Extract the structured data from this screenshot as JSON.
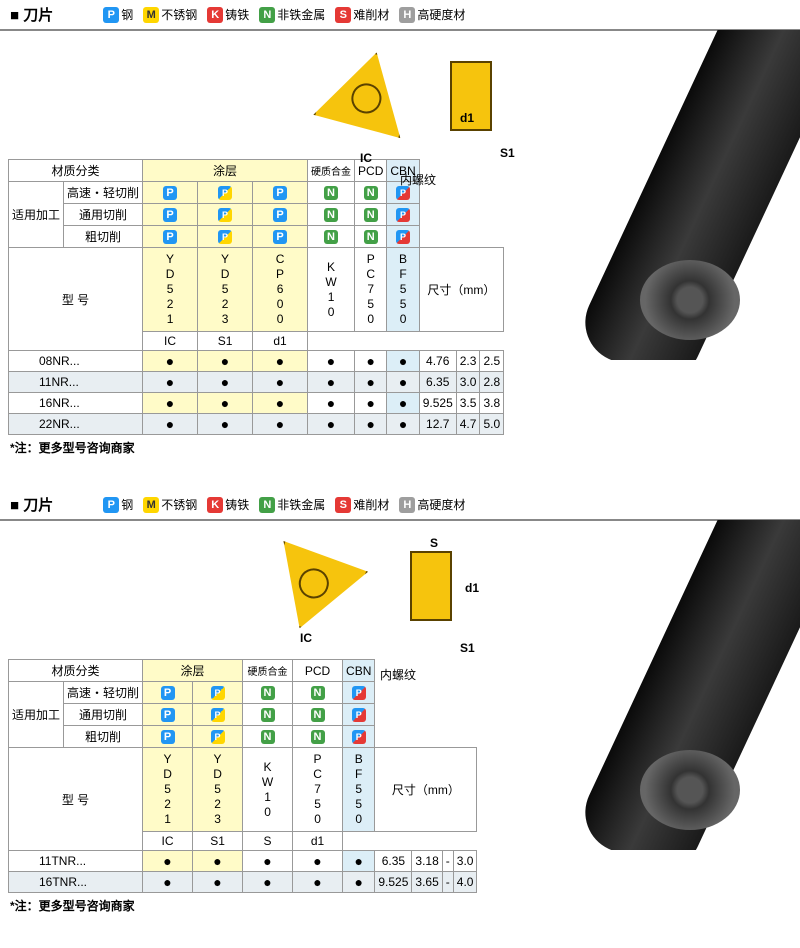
{
  "legend": {
    "P": {
      "label": "钢",
      "color": "#2196f3"
    },
    "M": {
      "label": "不锈钢",
      "color": "#ffd600"
    },
    "K": {
      "label": "铸铁",
      "color": "#e53935"
    },
    "N": {
      "label": "非铁金属",
      "color": "#43a047"
    },
    "S": {
      "label": "难削材",
      "color": "#e53935"
    },
    "H": {
      "label": "高硬度材",
      "color": "#9e9e9e"
    }
  },
  "section1": {
    "title": "刀片",
    "diagram_label": "内螺纹",
    "dim_labels": {
      "IC": "IC",
      "S1": "S1",
      "d1": "d1"
    },
    "mat_header": "材质分类",
    "coating_header": "涂层",
    "carbide_header": "硬质合金",
    "pcd_header": "PCD",
    "cbn_header": "CBN",
    "app_header": "适用加工",
    "rows_app": [
      "高速・轻切削",
      "通用切削",
      "粗切削"
    ],
    "app_icons": [
      [
        "P",
        "PM",
        "P",
        "N",
        "N",
        "N",
        "PK"
      ],
      [
        "P",
        "PM",
        "P",
        "N",
        "N",
        "N",
        "PK"
      ],
      [
        "P",
        "PM",
        "P",
        "N",
        "N",
        "N",
        "PK"
      ]
    ],
    "model_header": "型 号",
    "grades": [
      "YD521",
      "YD523",
      "CP600",
      "KW10",
      "PC750",
      "BF550"
    ],
    "grade_bg": [
      "yellow-bg",
      "yellow-bg",
      "yellow-bg",
      "",
      "",
      "blue-bg"
    ],
    "size_header": "尺寸（mm）",
    "size_cols": [
      "IC",
      "S1",
      "d1"
    ],
    "rows": [
      {
        "model": "08NR...",
        "dots": [
          "●",
          "●",
          "●",
          "●",
          "●",
          "●"
        ],
        "IC": "4.76",
        "S1": "2.3",
        "d1": "2.5"
      },
      {
        "model": "11NR...",
        "dots": [
          "●",
          "●",
          "●",
          "●",
          "●",
          "●"
        ],
        "IC": "6.35",
        "S1": "3.0",
        "d1": "2.8"
      },
      {
        "model": "16NR...",
        "dots": [
          "●",
          "●",
          "●",
          "●",
          "●",
          "●"
        ],
        "IC": "9.525",
        "S1": "3.5",
        "d1": "3.8"
      },
      {
        "model": "22NR...",
        "dots": [
          "●",
          "●",
          "●",
          "●",
          "●",
          "●"
        ],
        "IC": "12.7",
        "S1": "4.7",
        "d1": "5.0"
      }
    ],
    "note": "*注：更多型号咨询商家"
  },
  "section2": {
    "title": "刀片",
    "diagram_label": "内螺纹",
    "dim_labels": {
      "IC": "IC",
      "S1": "S1",
      "S": "S",
      "d1": "d1"
    },
    "mat_header": "材质分类",
    "coating_header": "涂层",
    "carbide_header": "硬质合金",
    "pcd_header": "PCD",
    "cbn_header": "CBN",
    "app_header": "适用加工",
    "rows_app": [
      "高速・轻切削",
      "通用切削",
      "粗切削"
    ],
    "app_icons": [
      [
        "P",
        "PM",
        "N",
        "N",
        "PK"
      ],
      [
        "P",
        "PM",
        "N",
        "N",
        "PK"
      ],
      [
        "P",
        "PM",
        "N",
        "N",
        "PK"
      ]
    ],
    "model_header": "型 号",
    "grades": [
      "YD521",
      "YD523",
      "KW10",
      "PC750",
      "BF550"
    ],
    "grade_bg": [
      "yellow-bg",
      "yellow-bg",
      "",
      "",
      "blue-bg"
    ],
    "size_header": "尺寸（mm）",
    "size_cols": [
      "IC",
      "S1",
      "S",
      "d1"
    ],
    "rows": [
      {
        "model": "11TNR...",
        "dots": [
          "●",
          "●",
          "●",
          "●",
          "●"
        ],
        "IC": "6.35",
        "S1": "3.18",
        "S": "-",
        "d1": "3.0"
      },
      {
        "model": "16TNR...",
        "dots": [
          "●",
          "●",
          "●",
          "●",
          "●"
        ],
        "IC": "9.525",
        "S1": "3.65",
        "S": "-",
        "d1": "4.0"
      }
    ],
    "note": "*注：更多型号咨询商家"
  },
  "colors": {
    "yellow_insert": "#f6c40d",
    "table_border": "#999999",
    "alt_row": "#e8eef2",
    "yellow_col": "#fffbc8",
    "blue_col": "#dceef7"
  }
}
